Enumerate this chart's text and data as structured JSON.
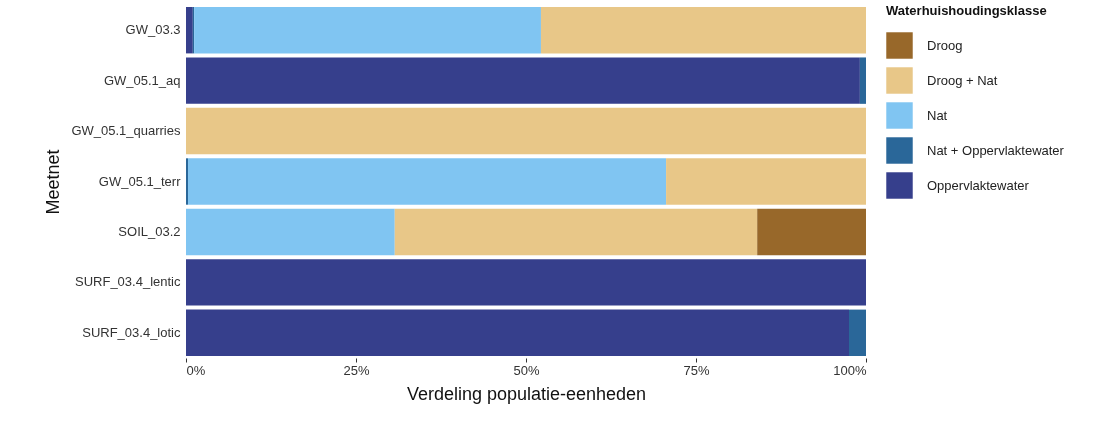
{
  "chart_data": {
    "type": "bar",
    "orientation": "horizontal",
    "stacked": true,
    "xlabel": "Verdeling populatie-eenheden",
    "ylabel": "Meetnet",
    "legend_title": "Waterhuishoudingsklasse",
    "legend": "right",
    "grid": false,
    "categories": [
      "GW_03.3",
      "GW_05.1_aq",
      "GW_05.1_quarries",
      "GW_05.1_terr",
      "SOIL_03.2",
      "SURF_03.4_lentic",
      "SURF_03.4_lotic"
    ],
    "xlim": [
      0,
      100
    ],
    "xticks": [
      {
        "value": 0,
        "label": "0%"
      },
      {
        "value": 25,
        "label": "25%"
      },
      {
        "value": 50,
        "label": "50%"
      },
      {
        "value": 75,
        "label": "75%"
      },
      {
        "value": 100,
        "label": "100%"
      }
    ],
    "series": [
      {
        "name": "Oppervlaktewater",
        "color": "#363f8c",
        "values": [
          1,
          99.1,
          0,
          0,
          0,
          100,
          97.5
        ]
      },
      {
        "name": "Nat + Oppervlaktewater",
        "color": "#2a6799",
        "values": [
          0.2,
          0.9,
          0,
          0.3,
          0,
          0,
          2.5
        ]
      },
      {
        "name": "Nat",
        "color": "#80c5f2",
        "values": [
          51,
          0,
          0,
          70.3,
          30.7,
          0,
          0
        ]
      },
      {
        "name": "Droog + Nat",
        "color": "#e8c788",
        "values": [
          47.8,
          0,
          100,
          29.4,
          53.3,
          0,
          0
        ]
      },
      {
        "name": "Droog",
        "color": "#98682a",
        "values": [
          0,
          0,
          0,
          0,
          16,
          0,
          0
        ]
      }
    ]
  }
}
